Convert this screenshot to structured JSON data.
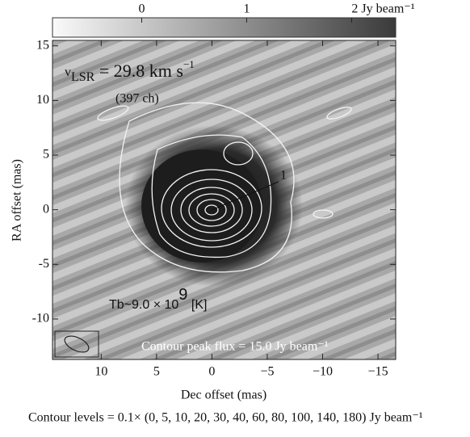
{
  "chart_data": {
    "type": "image",
    "xlabel": "Dec offset (mas)",
    "ylabel": "RA offset (mas)",
    "xlim": [
      14.4,
      -16.6
    ],
    "xticks": [
      10,
      5,
      0,
      {
        "value": -5,
        "label": "−5"
      },
      {
        "value": -10,
        "label": "−10"
      },
      {
        "value": -15,
        "label": "−15"
      }
    ],
    "ylim": [
      -13.7,
      15.5
    ],
    "yticks": [
      15,
      10,
      5,
      0,
      -5,
      -10
    ],
    "colorbar": {
      "lim": [
        -0.85,
        2.42
      ],
      "ticks": [
        0,
        1,
        {
          "value": 2,
          "label": "2 Jy beam⁻¹"
        }
      ]
    },
    "velocity": {
      "symbol": "v",
      "subscript": "LSR",
      "text": " = 29.8 km s",
      "superscript": "−1"
    },
    "channel": "(397 ch)",
    "feature_label": "1",
    "brightness": {
      "text": "Tb~9.0 × 10",
      "superscript": "9",
      "unit": " [K]"
    },
    "peak_flux": "Contour peak flux = 15.0 Jy beam⁻¹",
    "contour_levels": "Contour levels = 0.1× (0, 5, 10, 20, 30, 40, 60, 80, 100, 140, 180) Jy beam⁻¹"
  }
}
